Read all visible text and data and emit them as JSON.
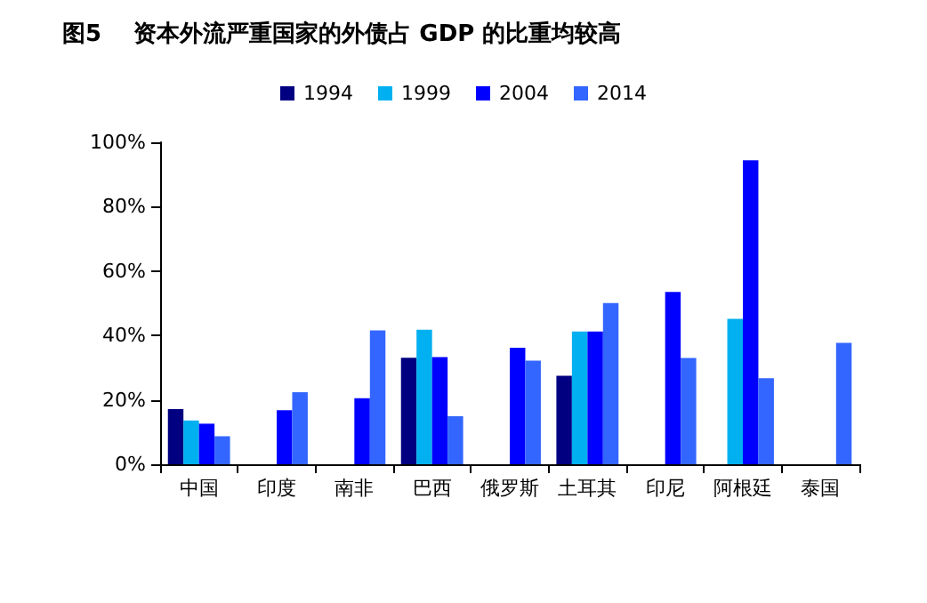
{
  "chart_data": {
    "type": "bar",
    "title": "图5    资本外流严重国家的外债占 GDP 的比重均较高",
    "categories": [
      "中国",
      "印度",
      "南非",
      "巴西",
      "俄罗斯",
      "土耳其",
      "印尼",
      "阿根廷",
      "泰国"
    ],
    "series": [
      {
        "name": "1994",
        "color": "#000080",
        "values": [
          17.1,
          null,
          null,
          33.1,
          null,
          27.5,
          null,
          null,
          null
        ]
      },
      {
        "name": "1999",
        "color": "#00b0f0",
        "values": [
          13.6,
          null,
          null,
          41.8,
          null,
          41.2,
          null,
          45.2,
          null
        ]
      },
      {
        "name": "2004",
        "color": "#0000ff",
        "values": [
          12.6,
          16.8,
          20.5,
          33.3,
          36.2,
          41.2,
          53.5,
          94.4,
          null
        ]
      },
      {
        "name": "2014",
        "color": "#3366ff",
        "values": [
          8.7,
          22.4,
          41.6,
          14.9,
          32.2,
          50.1,
          33,
          26.7,
          37.7
        ]
      }
    ],
    "ylim": [
      0,
      100
    ],
    "yticks": [
      {
        "value": 0,
        "label": "0%"
      },
      {
        "value": 20,
        "label": "20%"
      },
      {
        "value": 40,
        "label": "40%"
      },
      {
        "value": 60,
        "label": "60%"
      },
      {
        "value": 80,
        "label": "80%"
      },
      {
        "value": 100,
        "label": "100%"
      }
    ],
    "grid": false,
    "legend": "top"
  }
}
